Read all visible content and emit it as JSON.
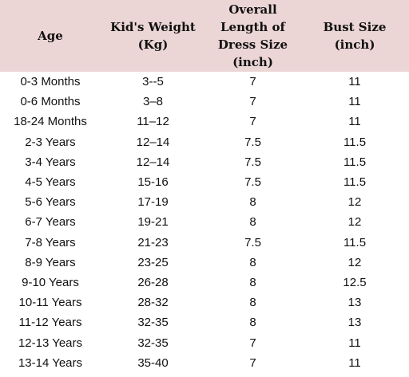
{
  "table": {
    "headers": [
      "Age",
      "Kid's Weight\n(Kg)",
      "Overall\nLength of\nDress Size\n(inch)",
      "Bust Size\n(inch)"
    ],
    "rows": [
      [
        "0-3 Months",
        "3--5",
        "7",
        "11"
      ],
      [
        "0-6 Months",
        "3–8",
        "7",
        "11"
      ],
      [
        "18-24 Months",
        "11–12",
        "7",
        "11"
      ],
      [
        "2-3 Years",
        "12–14",
        "7.5",
        "11.5"
      ],
      [
        "3-4 Years",
        "12–14",
        "7.5",
        "11.5"
      ],
      [
        "4-5 Years",
        "15-16",
        "7.5",
        "11.5"
      ],
      [
        "5-6 Years",
        "17-19",
        "8",
        "12"
      ],
      [
        "6-7 Years",
        "19-21",
        "8",
        "12"
      ],
      [
        "7-8 Years",
        "21-23",
        "7.5",
        "11.5"
      ],
      [
        "8-9 Years",
        "23-25",
        "8",
        "12"
      ],
      [
        "9-10 Years",
        "26-28",
        "8",
        "12.5"
      ],
      [
        "10-11 Years",
        "28-32",
        "8",
        "13"
      ],
      [
        "11-12 Years",
        "32-35",
        "8",
        "13"
      ],
      [
        "12-13 Years",
        "32-35",
        "7",
        "11"
      ],
      [
        "13-14 Years",
        "35-40",
        "7",
        "11"
      ]
    ],
    "header_background": "#ecd5d5"
  }
}
